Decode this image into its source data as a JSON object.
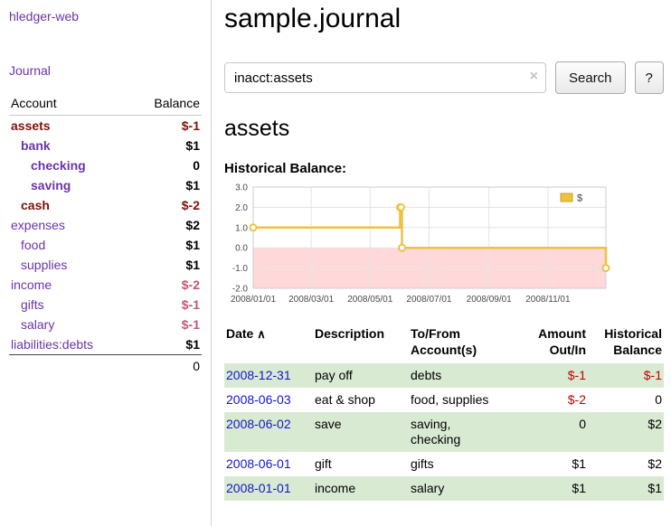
{
  "colors": {
    "link_purple": "#6a34a8",
    "link_blue": "#1414cc",
    "negative_dark": "#7d120b",
    "negative_light": "#c05a70",
    "negative_red": "#c10000",
    "row_green": "#d9ead3",
    "series_yellow": "#edc240",
    "negative_region": "#ffd9d9"
  },
  "sidebar": {
    "app_title": "hledger-web",
    "journal_link": "Journal",
    "accounts_table": {
      "headers": [
        "Account",
        "Balance"
      ],
      "rows": [
        {
          "name": "assets",
          "balance": "$-1",
          "level": 0,
          "bold": true,
          "name_color": "negative_dark",
          "balance_color": "negative_dark"
        },
        {
          "name": "bank",
          "balance": "$1",
          "level": 1,
          "bold": true
        },
        {
          "name": "checking",
          "balance": "0",
          "level": 2,
          "bold": true
        },
        {
          "name": "saving",
          "balance": "$1",
          "level": 2,
          "bold": true
        },
        {
          "name": "cash",
          "balance": "$-2",
          "level": 1,
          "bold": true,
          "name_color": "negative_dark",
          "balance_color": "negative_dark"
        },
        {
          "name": "expenses",
          "balance": "$2",
          "level": 0,
          "bold": false
        },
        {
          "name": "food",
          "balance": "$1",
          "level": 1,
          "bold": false
        },
        {
          "name": "supplies",
          "balance": "$1",
          "level": 1,
          "bold": false
        },
        {
          "name": "income",
          "balance": "$-2",
          "level": 0,
          "bold": false,
          "balance_color": "negative_light"
        },
        {
          "name": "gifts",
          "balance": "$-1",
          "level": 1,
          "bold": false,
          "balance_color": "negative_light"
        },
        {
          "name": "salary",
          "balance": "$-1",
          "level": 1,
          "bold": false,
          "balance_color": "negative_light"
        },
        {
          "name": "liabilities:debts",
          "balance": "$1",
          "level": 0,
          "bold": false
        }
      ],
      "total": "0"
    }
  },
  "header": {
    "title": "sample.journal"
  },
  "search": {
    "value": "inacct:assets",
    "clear_icon": "×",
    "button_label": "Search",
    "help_label": "?"
  },
  "account_page": {
    "title": "assets",
    "chart_label": "Historical Balance:"
  },
  "chart_data": {
    "type": "line",
    "title": "Historical Balance",
    "ylim": [
      -2,
      3
    ],
    "y_ticks": [
      "3.0",
      "2.0",
      "1.0",
      "0.0",
      "-1.0",
      "-2.0"
    ],
    "x_domain_days": [
      0,
      365
    ],
    "x_ticks": [
      {
        "label": "2008/01/01",
        "day": 0
      },
      {
        "label": "2008/03/01",
        "day": 60
      },
      {
        "label": "2008/05/01",
        "day": 121
      },
      {
        "label": "2008/07/01",
        "day": 182
      },
      {
        "label": "2008/09/01",
        "day": 244
      },
      {
        "label": "2008/11/01",
        "day": 305
      }
    ],
    "grid": true,
    "legend_position": "top-right",
    "legend": [
      {
        "label": "$"
      }
    ],
    "negative_region_below": 0,
    "series": [
      {
        "name": "$",
        "interpolation": "step-after",
        "points": [
          {
            "date": "2008-01-01",
            "day": 0,
            "value": 1
          },
          {
            "date": "2008-06-01",
            "day": 152,
            "value": 2
          },
          {
            "date": "2008-06-02",
            "day": 153,
            "value": 2
          },
          {
            "date": "2008-06-03",
            "day": 154,
            "value": 0
          },
          {
            "date": "2008-12-31",
            "day": 365,
            "value": -1
          }
        ]
      }
    ]
  },
  "register": {
    "headers": {
      "date": "Date",
      "sort_icon": "∧",
      "description": "Description",
      "account_line1": "To/From",
      "account_line2": "Account(s)",
      "amount_line1": "Amount",
      "amount_line2": "Out/In",
      "balance_line1": "Historical",
      "balance_line2": "Balance"
    },
    "rows": [
      {
        "date": "2008-12-31",
        "description": "pay off",
        "accounts": [
          "debts"
        ],
        "amount": "$-1",
        "amount_negative": true,
        "balance": "$-1",
        "balance_negative": true,
        "shaded": true
      },
      {
        "date": "2008-06-03",
        "description": "eat & shop",
        "accounts": [
          "food, supplies"
        ],
        "amount": "$-2",
        "amount_negative": true,
        "balance": "0",
        "balance_negative": false,
        "shaded": false
      },
      {
        "date": "2008-06-02",
        "description": "save",
        "accounts": [
          "saving,",
          "checking"
        ],
        "amount": "0",
        "amount_negative": false,
        "balance": "$2",
        "balance_negative": false,
        "shaded": true
      },
      {
        "date": "2008-06-01",
        "description": "gift",
        "accounts": [
          "gifts"
        ],
        "amount": "$1",
        "amount_negative": false,
        "balance": "$2",
        "balance_negative": false,
        "shaded": false
      },
      {
        "date": "2008-01-01",
        "description": "income",
        "accounts": [
          "salary"
        ],
        "amount": "$1",
        "amount_negative": false,
        "balance": "$1",
        "balance_negative": false,
        "shaded": true
      }
    ]
  }
}
